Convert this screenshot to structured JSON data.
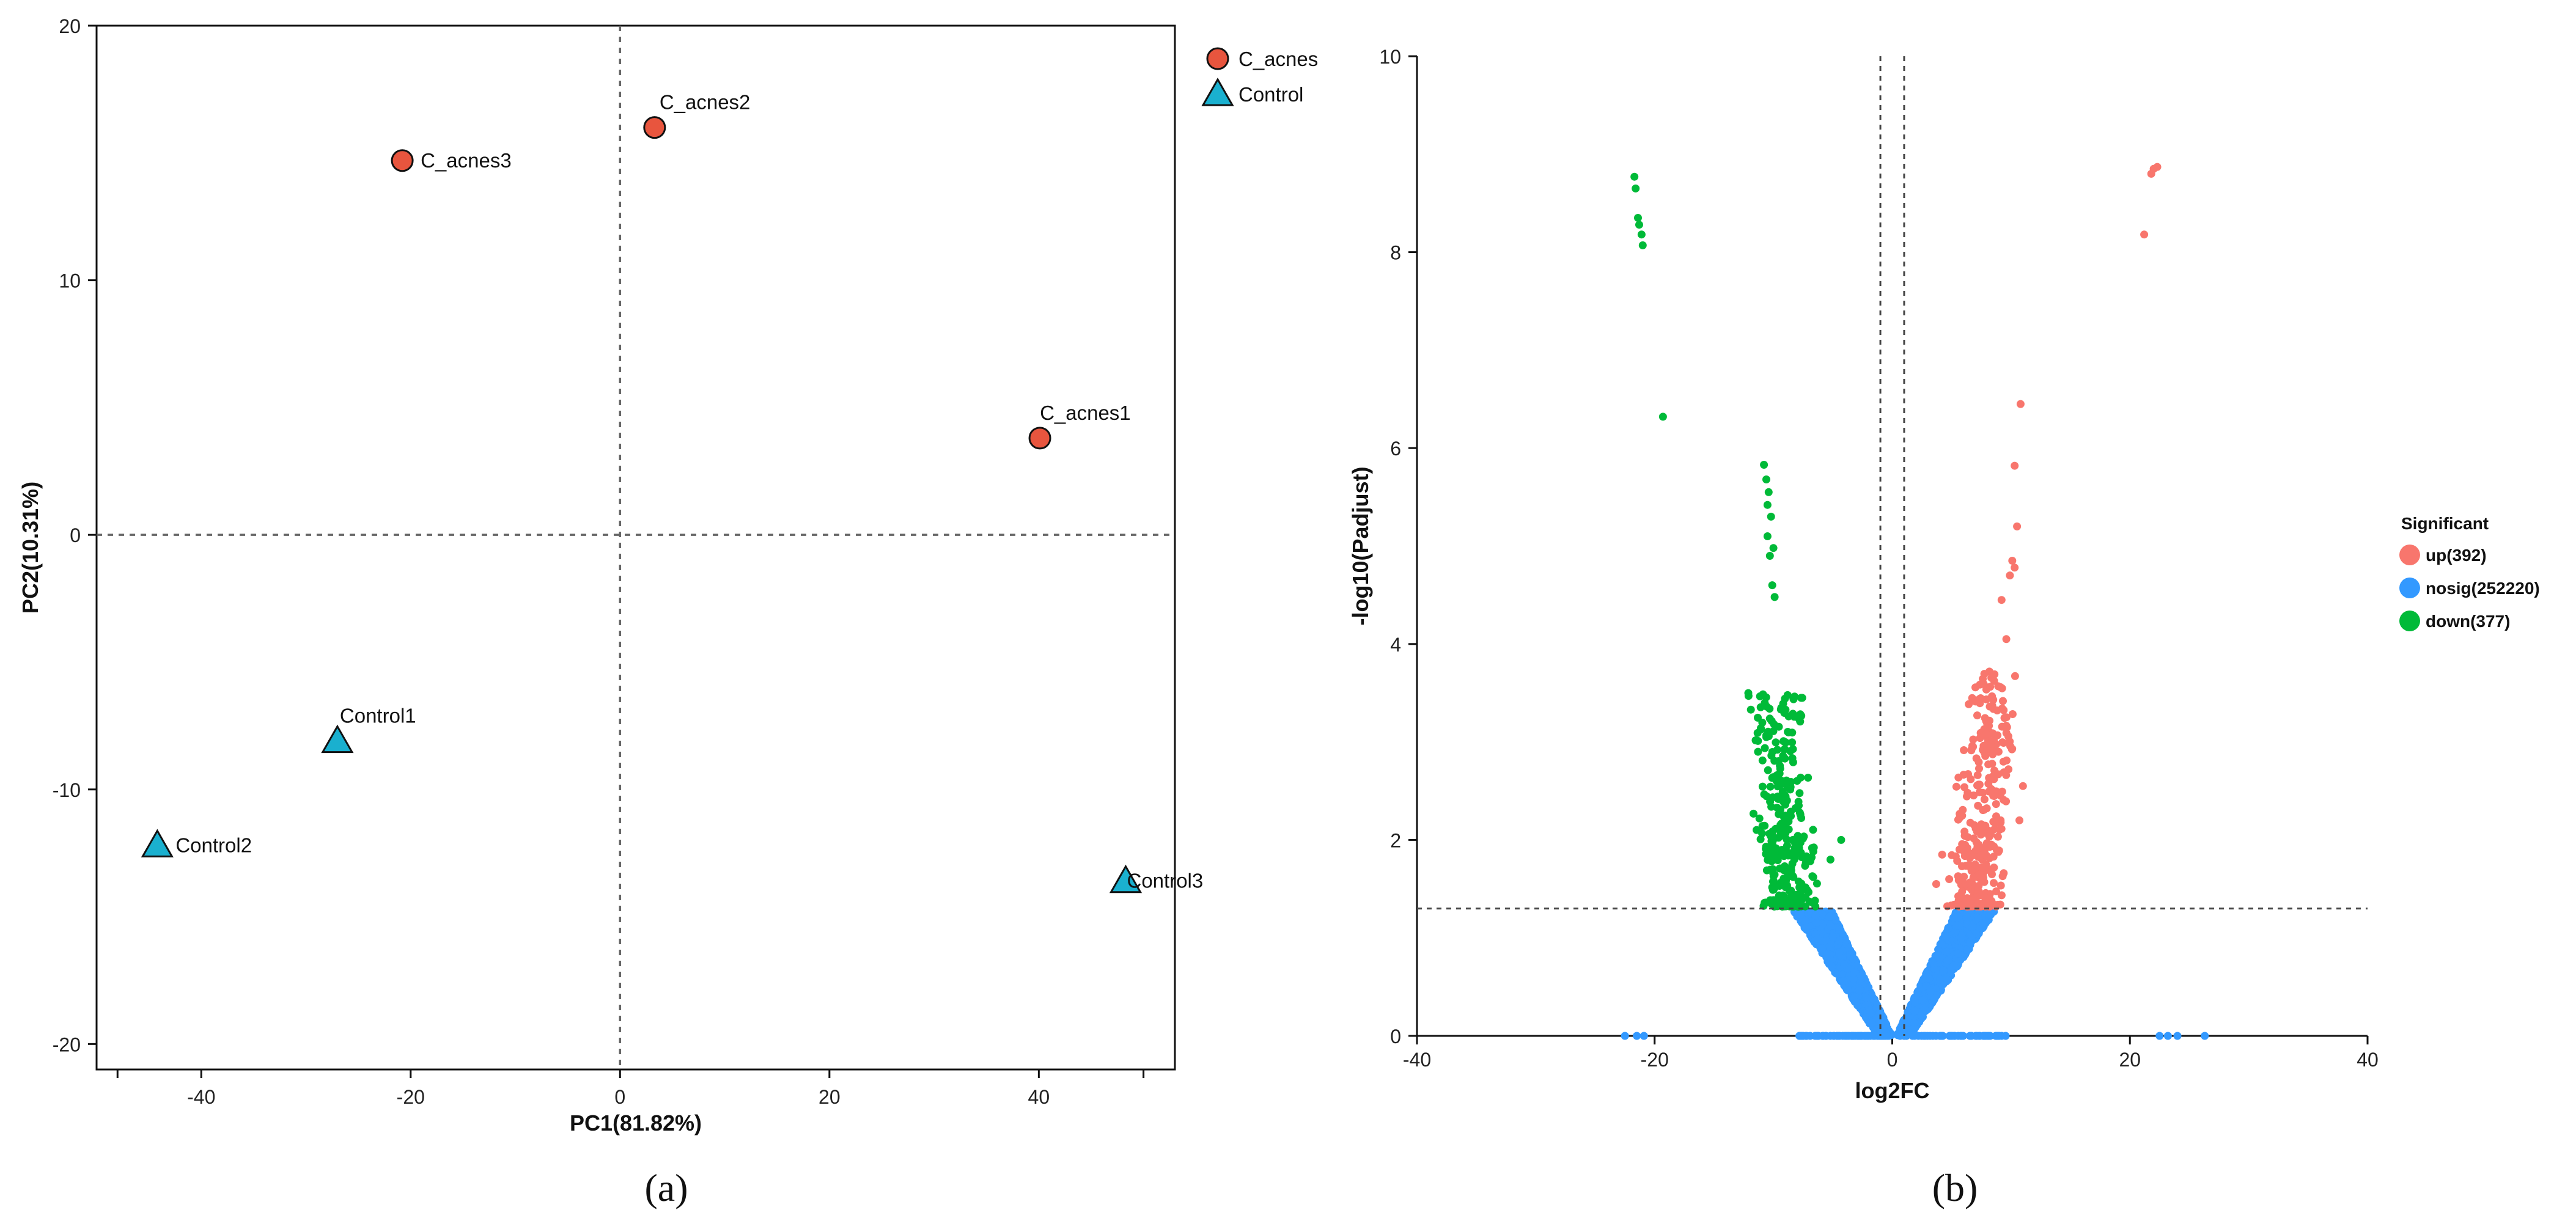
{
  "chart_data": [
    {
      "type": "scatter",
      "panel_label": "(a)",
      "xlabel": "PC1(81.82%)",
      "ylabel": "PC2(10.31%)",
      "xlim": [
        -50,
        53
      ],
      "ylim": [
        -21,
        20
      ],
      "xticks": [
        -40,
        -20,
        0,
        20,
        40
      ],
      "yticks": [
        -20,
        -10,
        0,
        10,
        20
      ],
      "xtick_labels": [
        "-40",
        "-20",
        "0",
        "20",
        "40"
      ],
      "ytick_labels": [
        "-20",
        "-10",
        "0",
        "10",
        "20"
      ],
      "reference_lines": {
        "x": 0,
        "y": 0
      },
      "legend": [
        {
          "name": "C_acnes",
          "marker": "circle",
          "color": "#e8553e"
        },
        {
          "name": "Control",
          "marker": "triangle",
          "color": "#1ab0cf"
        }
      ],
      "points": [
        {
          "label": "C_acnes1",
          "group": "C_acnes",
          "x": 40.1,
          "y": 3.8
        },
        {
          "label": "C_acnes2",
          "group": "C_acnes",
          "x": 3.3,
          "y": 16.0
        },
        {
          "label": "C_acnes3",
          "group": "C_acnes",
          "x": -20.8,
          "y": 14.7
        },
        {
          "label": "Control1",
          "group": "Control",
          "x": -27.0,
          "y": -8.1
        },
        {
          "label": "Control2",
          "group": "Control",
          "x": -44.2,
          "y": -12.2
        },
        {
          "label": "Control3",
          "group": "Control",
          "x": 48.3,
          "y": -13.6
        }
      ]
    },
    {
      "type": "scatter",
      "panel_label": "(b)",
      "xlabel": "log2FC",
      "ylabel": "-log10(Padjust)",
      "xlim": [
        -40,
        40
      ],
      "ylim": [
        0,
        10
      ],
      "xticks": [
        -40,
        -20,
        0,
        20,
        40
      ],
      "yticks": [
        0,
        2,
        4,
        6,
        8,
        10
      ],
      "xtick_labels": [
        "-40",
        "-20",
        "0",
        "20",
        "40"
      ],
      "ytick_labels": [
        "0",
        "2",
        "4",
        "6",
        "8",
        "10"
      ],
      "reference_lines": {
        "x": [
          -1,
          1
        ],
        "y": 1.3
      },
      "legend_title": "Significant",
      "legend": [
        {
          "name": "up(392)",
          "color": "#f8766d"
        },
        {
          "name": "nosig(252220)",
          "color": "#3399ff"
        },
        {
          "name": "down(377)",
          "color": "#00ba38"
        }
      ],
      "series": [
        {
          "name": "up",
          "color": "#f8766d",
          "highlight_points": [
            [
              21.2,
              8.18
            ],
            [
              21.8,
              8.8
            ],
            [
              22.0,
              8.85
            ],
            [
              22.3,
              8.87
            ],
            [
              10.8,
              6.45
            ],
            [
              10.3,
              5.82
            ],
            [
              10.5,
              5.2
            ],
            [
              10.1,
              4.85
            ],
            [
              10.3,
              4.78
            ],
            [
              9.9,
              4.7
            ],
            [
              9.2,
              4.45
            ],
            [
              9.6,
              4.05
            ]
          ]
        },
        {
          "name": "nosig",
          "color": "#3399ff",
          "highlight_points": [
            [
              -22.5,
              0.0
            ],
            [
              -21.5,
              0.0
            ],
            [
              -20.9,
              0.0
            ],
            [
              22.5,
              0.0
            ],
            [
              23.2,
              0.0
            ],
            [
              24.0,
              0.0
            ],
            [
              26.3,
              0.0
            ]
          ]
        },
        {
          "name": "down",
          "color": "#00ba38",
          "highlight_points": [
            [
              -21.7,
              8.77
            ],
            [
              -21.6,
              8.65
            ],
            [
              -21.4,
              8.35
            ],
            [
              -21.3,
              8.28
            ],
            [
              -21.1,
              8.18
            ],
            [
              -21.0,
              8.07
            ],
            [
              -19.3,
              6.32
            ],
            [
              -10.8,
              5.83
            ],
            [
              -10.6,
              5.68
            ],
            [
              -10.4,
              5.55
            ],
            [
              -10.5,
              5.42
            ],
            [
              -10.2,
              5.3
            ],
            [
              -10.5,
              5.1
            ],
            [
              -10.0,
              4.98
            ],
            [
              -10.3,
              4.9
            ],
            [
              -10.1,
              4.6
            ],
            [
              -9.9,
              4.48
            ]
          ]
        }
      ]
    }
  ]
}
